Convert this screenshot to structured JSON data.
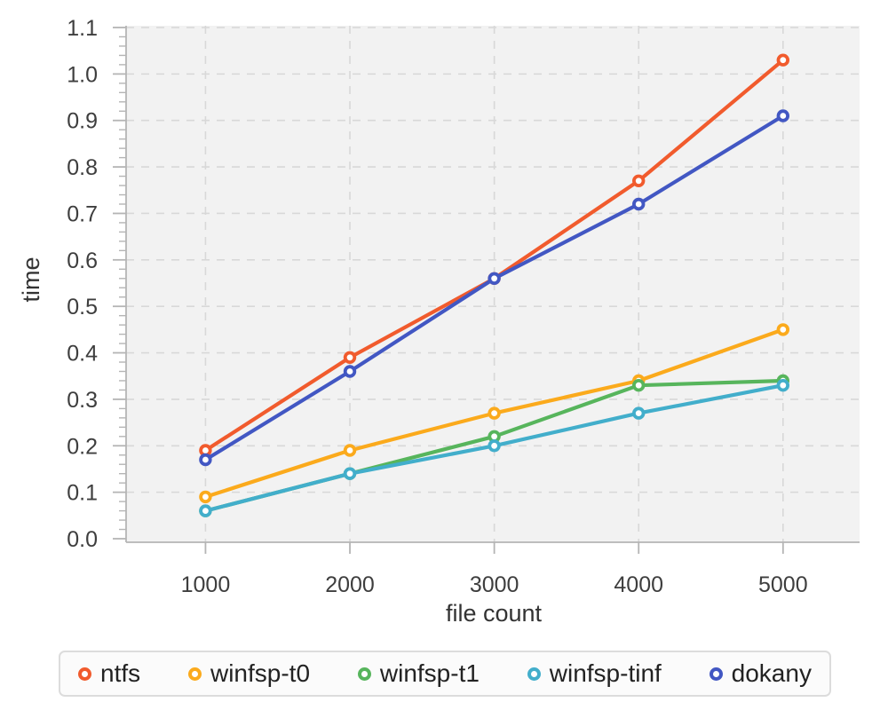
{
  "chart_data": {
    "type": "line",
    "title": "",
    "xlabel": "file count",
    "ylabel": "time",
    "x": [
      1000,
      2000,
      3000,
      4000,
      5000
    ],
    "x_tick_labels": [
      "1000",
      "2000",
      "3000",
      "4000",
      "5000"
    ],
    "y_ticks": [
      "0.0",
      "0.1",
      "0.2",
      "0.3",
      "0.4",
      "0.5",
      "0.6",
      "0.7",
      "0.8",
      "0.9",
      "1.0",
      "1.1"
    ],
    "xlim": [
      450,
      5530
    ],
    "ylim": [
      0,
      1.1
    ],
    "grid": true,
    "gridline_style": "dashed",
    "legend_position": "bottom",
    "marker": "open-circle",
    "series": [
      {
        "name": "ntfs",
        "color": "#f15b2d",
        "values": [
          0.19,
          0.39,
          0.56,
          0.77,
          1.03
        ]
      },
      {
        "name": "winfsp-t0",
        "color": "#fbaa1c",
        "values": [
          0.09,
          0.19,
          0.27,
          0.34,
          0.45
        ]
      },
      {
        "name": "winfsp-t1",
        "color": "#57b55c",
        "values": [
          0.06,
          0.14,
          0.22,
          0.33,
          0.34
        ]
      },
      {
        "name": "winfsp-tinf",
        "color": "#42aecb",
        "values": [
          0.06,
          0.14,
          0.2,
          0.27,
          0.33
        ]
      },
      {
        "name": "dokany",
        "color": "#4257c3",
        "values": [
          0.17,
          0.36,
          0.56,
          0.72,
          0.91
        ]
      }
    ],
    "plot_background": "#f2f2f2",
    "grid_color": "#d8d8d8",
    "axis_color": "#b5b5b5",
    "tick_label_color": "#3e3e3e",
    "axis_title_color": "#333333",
    "legend_text_color": "#222222",
    "legend_border_color": "#dcdcdc",
    "legend_background": "#fbfbfb"
  }
}
